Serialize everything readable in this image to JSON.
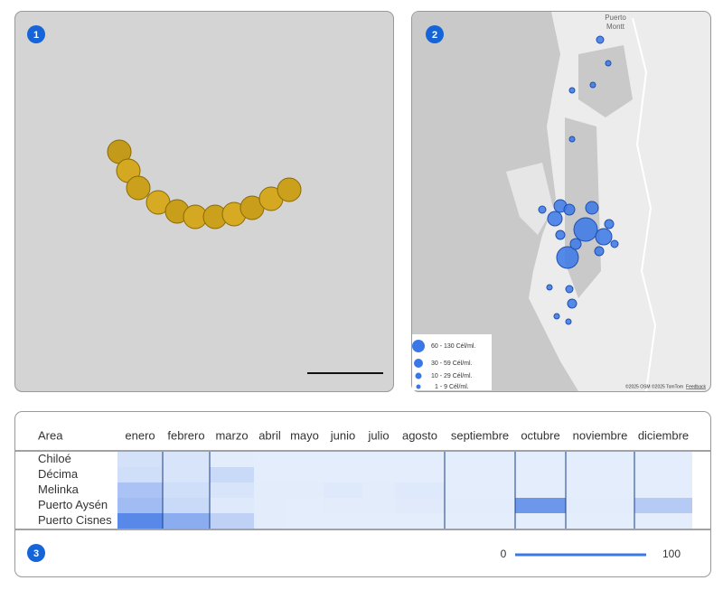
{
  "badges": [
    "1",
    "2",
    "3"
  ],
  "map": {
    "city": [
      "Puerto",
      "Montt"
    ],
    "legend": [
      "60 - 130 Cél/ml.",
      "30 - 59 Cél/ml.",
      "10 - 29 Cél/ml.",
      "1 - 9 Cél/ml."
    ],
    "attribution": "©2025 OSM ©2025 TomTom",
    "feedback": "Feedback"
  },
  "heatmap": {
    "type": "heatmap",
    "row_header": "Area",
    "columns": [
      "enero",
      "febrero",
      "marzo",
      "abril",
      "mayo",
      "junio",
      "julio",
      "agosto",
      "septiembre",
      "octubre",
      "noviembre",
      "diciembre"
    ],
    "rows": [
      "Chiloé",
      "Décima",
      "Melinka",
      "Puerto Aysén",
      "Puerto Cisnes"
    ],
    "values": [
      [
        10,
        8,
        3,
        2,
        2,
        2,
        2,
        2,
        2,
        2,
        2,
        2
      ],
      [
        12,
        8,
        15,
        2,
        2,
        2,
        2,
        2,
        2,
        2,
        2,
        2
      ],
      [
        30,
        12,
        8,
        3,
        3,
        5,
        3,
        5,
        2,
        2,
        2,
        2
      ],
      [
        35,
        15,
        5,
        3,
        2,
        3,
        3,
        4,
        3,
        60,
        3,
        25
      ],
      [
        70,
        45,
        20,
        3,
        2,
        2,
        2,
        2,
        2,
        2,
        2,
        2
      ]
    ],
    "scale": {
      "min": 0,
      "max": 100
    }
  }
}
